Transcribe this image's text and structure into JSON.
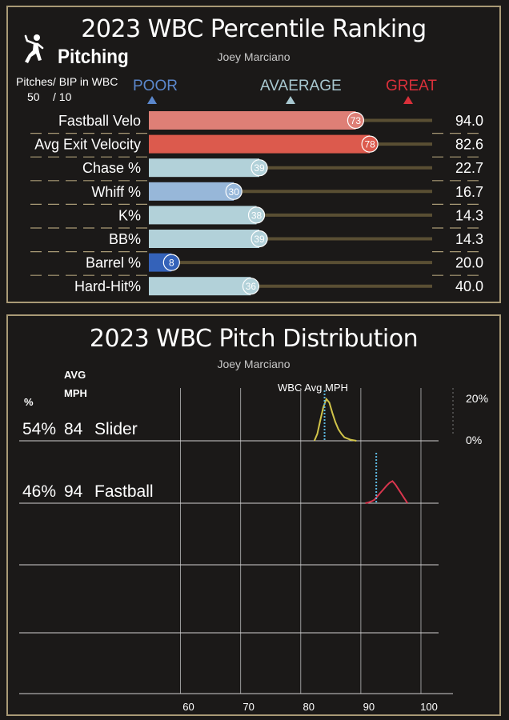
{
  "percentile_panel": {
    "title": "2023 WBC Percentile Ranking",
    "subtitle": "Joey Marciano",
    "section_label": "Pitching",
    "pitches_bip_label": "Pitches/ BIP in WBC",
    "pitches_count": "50",
    "bip_count": "/ 10",
    "scale_poor": "POOR",
    "scale_average": "AVAERAGE",
    "scale_great": "GREAT",
    "colors": {
      "poor": "#5b87cc",
      "average": "#a8c8d0",
      "great": "#d9303a"
    }
  },
  "distribution_panel": {
    "title": "2023 WBC Pitch Distribution",
    "subtitle": "Joey Marciano",
    "col_pct": "%",
    "col_avg": "AVG",
    "col_mph": "MPH",
    "wbc_avg_label": "WBC Avg MPH",
    "scale_top": "20%",
    "scale_bottom": "0%"
  },
  "chart_data": [
    {
      "type": "bar",
      "title": "2023 WBC Percentile Ranking",
      "categories": [
        "Fastball Velo",
        "Avg Exit Velocity",
        "Chase %",
        "Whiff %",
        "K%",
        "BB%",
        "Barrel %",
        "Hard-Hit%"
      ],
      "percentiles": [
        73,
        78,
        39,
        30,
        38,
        39,
        8,
        36
      ],
      "values": [
        "94.0",
        "82.6",
        "22.7",
        "16.7",
        "14.3",
        "14.3",
        "20.0",
        "40.0"
      ],
      "bar_colors": [
        "#de7f76",
        "#dc5a4d",
        "#b2d1d9",
        "#97b7d9",
        "#b2d1d9",
        "#b2d1d9",
        "#3462b9",
        "#b2d1d9"
      ],
      "xlim": [
        0,
        100
      ]
    },
    {
      "type": "area",
      "title": "2023 WBC Pitch Distribution",
      "x_ticks": [
        60,
        70,
        80,
        90,
        100
      ],
      "xlim": [
        58,
        105
      ],
      "ylim": [
        0,
        20
      ],
      "pitches": [
        {
          "name": "Slider",
          "pct": "54%",
          "avg_mph": "84",
          "color": "#d1c449",
          "wbc_avg_mph": 83.7,
          "x": [
            82,
            82.5,
            83,
            83.5,
            84,
            84.5,
            85,
            85.5,
            86,
            86.5,
            87,
            88,
            89
          ],
          "y": [
            0,
            3,
            9,
            14.5,
            18,
            16.5,
            12,
            8,
            5,
            3,
            1.5,
            0.5,
            0
          ]
        },
        {
          "name": "Fastball",
          "pct": "46%",
          "avg_mph": "94",
          "color": "#d9364e",
          "wbc_avg_mph": 92.3,
          "x": [
            90.5,
            91,
            91.5,
            92,
            92.5,
            93,
            93.5,
            94,
            94.5,
            95,
            95.5,
            96,
            96.5,
            97,
            97.5
          ],
          "y": [
            0,
            0.3,
            0.8,
            1.5,
            3,
            4.5,
            6,
            7.5,
            8.8,
            9.5,
            8,
            6,
            4,
            2,
            0
          ]
        }
      ]
    }
  ]
}
